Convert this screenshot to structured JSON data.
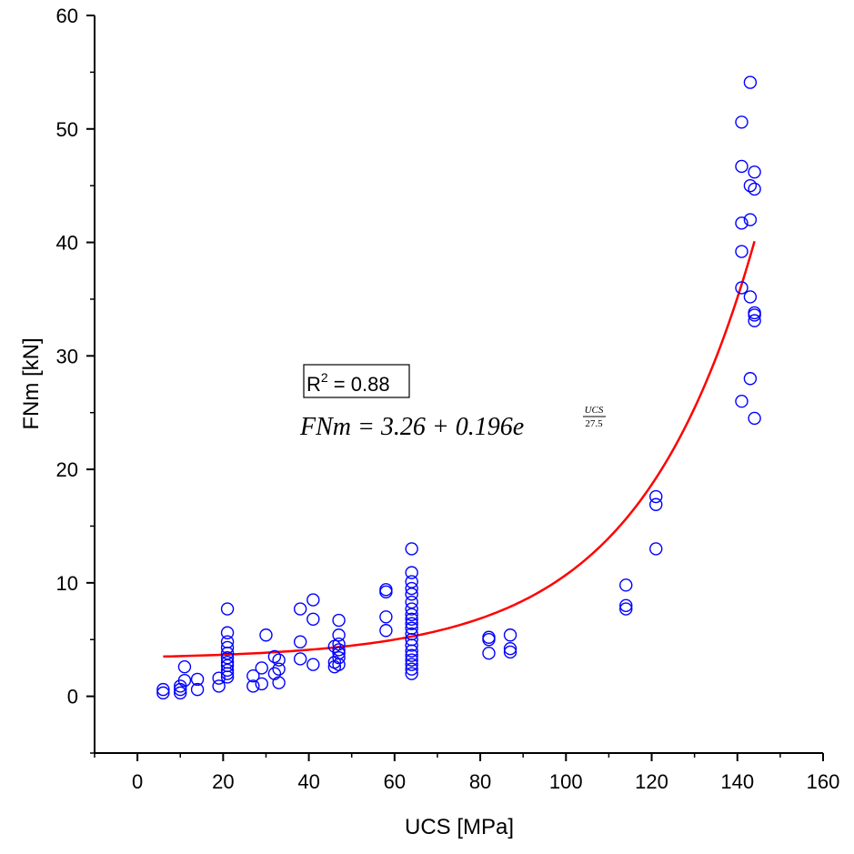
{
  "chart_data": {
    "type": "scatter",
    "title": "",
    "xlabel": "UCS [MPa]",
    "ylabel": "FNm [kN]",
    "xlim": [
      -10,
      160
    ],
    "ylim": [
      -5,
      60
    ],
    "x_ticks": [
      "0",
      "20",
      "40",
      "60",
      "80",
      "100",
      "120",
      "140",
      "160"
    ],
    "y_ticks": [
      "0",
      "10",
      "20",
      "30",
      "40",
      "50",
      "60"
    ],
    "grid": false,
    "colors": {
      "points": "#0000ff",
      "fit": "#ff0000"
    },
    "annotation": {
      "r2_label": "R",
      "r2_sup": "2",
      "r2_value": " = 0.88",
      "equation_main": "FNm = 3.26 + 0.196e",
      "equation_num": "UCS",
      "equation_den": "27.5"
    },
    "fit": {
      "a": 3.26,
      "b": 0.196,
      "c": 27.5,
      "x_range": [
        6,
        144
      ]
    },
    "series": [
      {
        "values": [
          [
            6,
            0.3
          ],
          [
            6,
            0.6
          ],
          [
            10,
            0.3
          ],
          [
            10,
            0.6
          ],
          [
            10,
            0.9
          ],
          [
            11,
            1.4
          ],
          [
            11,
            2.6
          ],
          [
            14,
            0.6
          ],
          [
            14,
            1.5
          ],
          [
            19,
            0.9
          ],
          [
            19,
            1.6
          ],
          [
            21,
            1.7
          ],
          [
            21,
            2.0
          ],
          [
            21,
            2.3
          ],
          [
            21,
            2.7
          ],
          [
            21,
            3.0
          ],
          [
            21,
            3.4
          ],
          [
            21,
            3.8
          ],
          [
            21,
            4.3
          ],
          [
            21,
            4.8
          ],
          [
            21,
            5.6
          ],
          [
            21,
            7.7
          ],
          [
            27,
            0.9
          ],
          [
            27,
            1.8
          ],
          [
            29,
            1.1
          ],
          [
            29,
            2.5
          ],
          [
            30,
            5.4
          ],
          [
            32,
            2.0
          ],
          [
            32,
            3.5
          ],
          [
            33,
            1.2
          ],
          [
            33,
            2.4
          ],
          [
            33,
            3.2
          ],
          [
            38,
            3.3
          ],
          [
            38,
            4.8
          ],
          [
            38,
            7.7
          ],
          [
            41,
            2.8
          ],
          [
            41,
            6.8
          ],
          [
            41,
            8.5
          ],
          [
            46,
            2.6
          ],
          [
            46,
            3.0
          ],
          [
            47,
            2.8
          ],
          [
            47,
            3.4
          ],
          [
            47,
            4.1
          ],
          [
            47,
            4.6
          ],
          [
            47,
            5.4
          ],
          [
            47,
            6.7
          ],
          [
            47,
            3.8
          ],
          [
            46,
            4.4
          ],
          [
            58,
            5.8
          ],
          [
            58,
            7.0
          ],
          [
            58,
            9.2
          ],
          [
            58,
            9.4
          ],
          [
            64,
            2.0
          ],
          [
            64,
            2.4
          ],
          [
            64,
            2.8
          ],
          [
            64,
            3.2
          ],
          [
            64,
            3.6
          ],
          [
            64,
            4.0
          ],
          [
            64,
            4.5
          ],
          [
            64,
            5.0
          ],
          [
            64,
            5.5
          ],
          [
            64,
            6.0
          ],
          [
            64,
            6.4
          ],
          [
            64,
            6.8
          ],
          [
            64,
            7.2
          ],
          [
            64,
            7.7
          ],
          [
            64,
            8.3
          ],
          [
            64,
            9.0
          ],
          [
            64,
            9.5
          ],
          [
            64,
            10.1
          ],
          [
            64,
            10.9
          ],
          [
            64,
            13.0
          ],
          [
            82,
            3.8
          ],
          [
            82,
            5.0
          ],
          [
            82,
            5.2
          ],
          [
            87,
            3.9
          ],
          [
            87,
            4.2
          ],
          [
            87,
            5.4
          ],
          [
            114,
            7.7
          ],
          [
            114,
            8.0
          ],
          [
            114,
            9.8
          ],
          [
            121,
            13.0
          ],
          [
            121,
            16.9
          ],
          [
            121,
            17.6
          ],
          [
            141,
            26.0
          ],
          [
            141,
            36.0
          ],
          [
            141,
            39.2
          ],
          [
            141,
            41.7
          ],
          [
            141,
            46.7
          ],
          [
            141,
            50.6
          ],
          [
            143,
            28.0
          ],
          [
            143,
            35.2
          ],
          [
            143,
            42.0
          ],
          [
            143,
            45.0
          ],
          [
            143,
            54.1
          ],
          [
            144,
            24.5
          ],
          [
            144,
            33.1
          ],
          [
            144,
            33.6
          ],
          [
            144,
            33.8
          ],
          [
            144,
            44.7
          ],
          [
            144,
            46.2
          ]
        ]
      }
    ]
  }
}
